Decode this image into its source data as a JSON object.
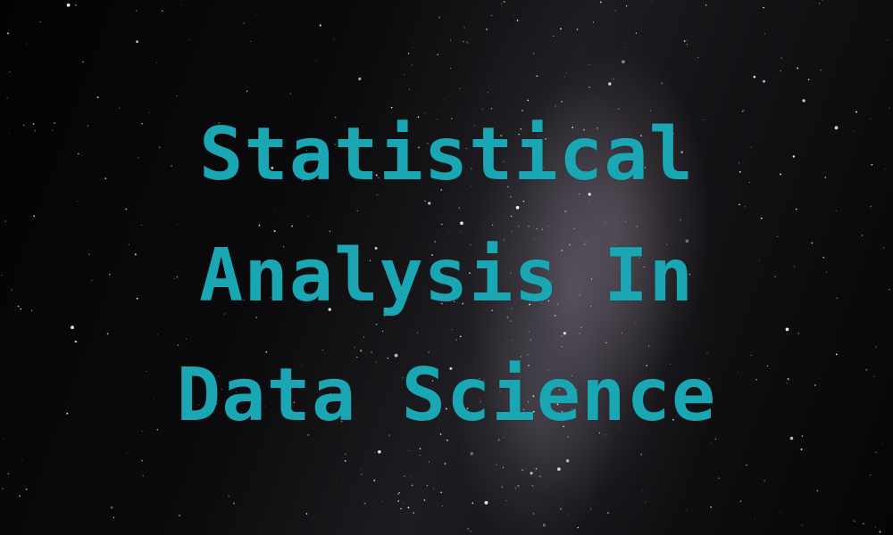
{
  "title": {
    "line1": "Statistical",
    "line2": "Analysis In",
    "line3": "Data Science"
  },
  "colors": {
    "title_text": "#1aa6b3",
    "background": "#050506",
    "galaxy_glow": "#a89aac"
  }
}
